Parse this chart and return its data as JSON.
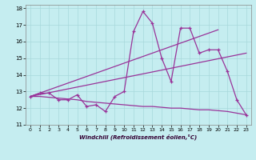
{
  "xlabel": "Windchill (Refroidissement éolien,°C)",
  "xlim": [
    -0.5,
    23.5
  ],
  "ylim": [
    11,
    18.2
  ],
  "yticks": [
    11,
    12,
    13,
    14,
    15,
    16,
    17,
    18
  ],
  "xticks": [
    0,
    1,
    2,
    3,
    4,
    5,
    6,
    7,
    8,
    9,
    10,
    11,
    12,
    13,
    14,
    15,
    16,
    17,
    18,
    19,
    20,
    21,
    22,
    23
  ],
  "background_color": "#c5edf0",
  "line_color": "#993399",
  "grid_color": "#a8d8db",
  "series": {
    "line_main": {
      "x": [
        0,
        1,
        2,
        3,
        4,
        5,
        6,
        7,
        8,
        9,
        10,
        11,
        12,
        13,
        14,
        15,
        16,
        17,
        18,
        19,
        20,
        21,
        22,
        23
      ],
      "y": [
        12.7,
        12.9,
        12.9,
        12.5,
        12.5,
        12.8,
        12.1,
        12.2,
        11.8,
        12.7,
        13.0,
        16.6,
        17.8,
        17.1,
        15.0,
        13.6,
        16.8,
        16.8,
        15.3,
        15.5,
        15.5,
        14.2,
        12.5,
        11.6
      ]
    },
    "line_steep": {
      "x": [
        0,
        20
      ],
      "y": [
        12.7,
        16.7
      ]
    },
    "line_mid": {
      "x": [
        0,
        23
      ],
      "y": [
        12.7,
        15.3
      ]
    },
    "line_flat": {
      "x": [
        0,
        1,
        2,
        3,
        4,
        5,
        6,
        7,
        8,
        9,
        10,
        11,
        12,
        13,
        14,
        15,
        16,
        17,
        18,
        19,
        20,
        21,
        22,
        23
      ],
      "y": [
        12.7,
        12.7,
        12.65,
        12.6,
        12.55,
        12.5,
        12.4,
        12.35,
        12.3,
        12.25,
        12.2,
        12.15,
        12.1,
        12.1,
        12.05,
        12.0,
        12.0,
        11.95,
        11.9,
        11.9,
        11.85,
        11.8,
        11.7,
        11.6
      ]
    }
  }
}
